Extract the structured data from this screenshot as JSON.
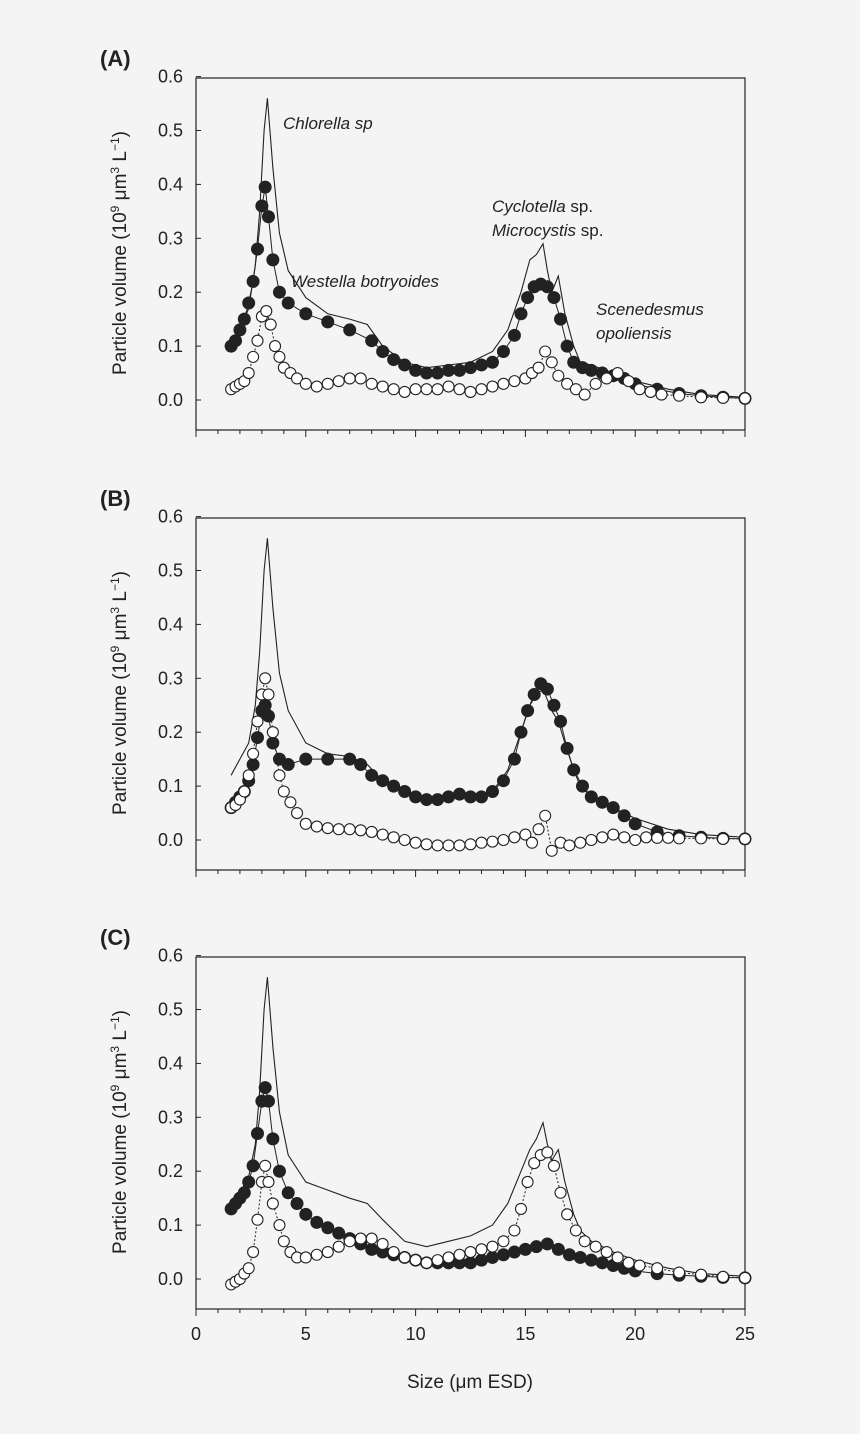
{
  "colors": {
    "background": "#f4f4f4",
    "ink": "#222222",
    "open_fill": "#ffffff"
  },
  "x_axis_title": "Size (μm ESD)",
  "y_axis_title_main": "Particle volume  (10",
  "y_axis_title_sup1": "9",
  "y_axis_title_mid": " μm",
  "y_axis_title_sup2": "3",
  "y_axis_title_end": " L",
  "y_axis_title_sup3": "−1",
  "y_axis_title_close": ")",
  "annotations": {
    "chlorella": "Chlorella sp",
    "westella": "Westella botryoides",
    "cyclotella_name": "Cyclotella",
    "cyclotella_suffix": " sp.",
    "microcystis_name": "Microcystis",
    "microcystis_suffix": " sp.",
    "scenedesmus_1": "Scenedesmus",
    "scenedesmus_2": "opoliensis"
  },
  "chart_data": [
    {
      "type": "line",
      "panel_label": "(A)",
      "xlabel": "Size (μm ESD)",
      "ylabel": "Particle volume (10^9 μm^3 L^-1)",
      "xlim": [
        0,
        25
      ],
      "ylim": [
        -0.05,
        0.6
      ],
      "x_ticks": [
        0,
        5,
        10,
        15,
        20,
        25
      ],
      "y_ticks": [
        "0.0",
        "0.1",
        "0.2",
        "0.3",
        "0.4",
        "0.5",
        "0.6"
      ],
      "show_x_tick_labels": false,
      "series": [
        {
          "name": "reference (line)",
          "style": "line",
          "x": [
            1.6,
            2.0,
            2.4,
            2.7,
            2.9,
            3.1,
            3.25,
            3.5,
            3.8,
            4.2,
            5.0,
            6.0,
            7.0,
            7.8,
            8.5,
            9.5,
            10.5,
            11.5,
            12.5,
            13.5,
            14.2,
            14.8,
            15.2,
            15.5,
            15.8,
            16.0,
            16.2,
            16.5,
            16.8,
            17.2,
            17.5,
            18.0,
            19.0,
            20.0,
            21.5,
            23.0,
            25.0
          ],
          "y": [
            0.1,
            0.13,
            0.17,
            0.25,
            0.35,
            0.5,
            0.56,
            0.43,
            0.31,
            0.24,
            0.19,
            0.16,
            0.15,
            0.14,
            0.1,
            0.07,
            0.06,
            0.065,
            0.07,
            0.09,
            0.13,
            0.2,
            0.26,
            0.27,
            0.29,
            0.24,
            0.2,
            0.23,
            0.16,
            0.1,
            0.07,
            0.065,
            0.05,
            0.035,
            0.02,
            0.01,
            0.005
          ]
        },
        {
          "name": "filled circles",
          "style": "filled",
          "x": [
            1.6,
            1.8,
            2.0,
            2.2,
            2.4,
            2.6,
            2.8,
            3.0,
            3.15,
            3.3,
            3.5,
            3.8,
            4.2,
            5.0,
            6.0,
            7.0,
            8.0,
            8.5,
            9.0,
            9.5,
            10.0,
            10.5,
            11.0,
            11.5,
            12.0,
            12.5,
            13.0,
            13.5,
            14.0,
            14.5,
            14.8,
            15.1,
            15.4,
            15.7,
            16.0,
            16.3,
            16.6,
            16.9,
            17.2,
            17.6,
            18.0,
            18.5,
            19.0,
            19.5,
            20.0,
            21.0,
            22.0,
            23.0,
            24.0,
            25.0
          ],
          "y": [
            0.1,
            0.11,
            0.13,
            0.15,
            0.18,
            0.22,
            0.28,
            0.36,
            0.395,
            0.34,
            0.26,
            0.2,
            0.18,
            0.16,
            0.145,
            0.13,
            0.11,
            0.09,
            0.075,
            0.065,
            0.055,
            0.05,
            0.05,
            0.055,
            0.055,
            0.06,
            0.065,
            0.07,
            0.09,
            0.12,
            0.16,
            0.19,
            0.21,
            0.215,
            0.21,
            0.19,
            0.15,
            0.1,
            0.07,
            0.06,
            0.055,
            0.05,
            0.045,
            0.04,
            0.03,
            0.02,
            0.012,
            0.008,
            0.005,
            0.003
          ]
        },
        {
          "name": "open circles",
          "style": "open",
          "x": [
            1.6,
            1.8,
            2.0,
            2.2,
            2.4,
            2.6,
            2.8,
            3.0,
            3.2,
            3.4,
            3.6,
            3.8,
            4.0,
            4.3,
            4.6,
            5.0,
            5.5,
            6.0,
            6.5,
            7.0,
            7.5,
            8.0,
            8.5,
            9.0,
            9.5,
            10.0,
            10.5,
            11.0,
            11.5,
            12.0,
            12.5,
            13.0,
            13.5,
            14.0,
            14.5,
            15.0,
            15.3,
            15.6,
            15.9,
            16.2,
            16.5,
            16.9,
            17.3,
            17.7,
            18.2,
            18.7,
            19.2,
            19.7,
            20.2,
            20.7,
            21.2,
            22.0,
            23.0,
            24.0,
            25.0
          ],
          "y": [
            0.02,
            0.025,
            0.03,
            0.035,
            0.05,
            0.08,
            0.11,
            0.155,
            0.165,
            0.14,
            0.1,
            0.08,
            0.06,
            0.05,
            0.04,
            0.03,
            0.025,
            0.03,
            0.035,
            0.04,
            0.04,
            0.03,
            0.025,
            0.02,
            0.015,
            0.02,
            0.02,
            0.02,
            0.025,
            0.02,
            0.015,
            0.02,
            0.025,
            0.03,
            0.035,
            0.04,
            0.05,
            0.06,
            0.09,
            0.07,
            0.045,
            0.03,
            0.02,
            0.01,
            0.03,
            0.04,
            0.05,
            0.035,
            0.02,
            0.015,
            0.01,
            0.008,
            0.005,
            0.004,
            0.003
          ]
        }
      ]
    },
    {
      "type": "line",
      "panel_label": "(B)",
      "xlabel": "Size (μm ESD)",
      "ylabel": "Particle volume (10^9 μm^3 L^-1)",
      "xlim": [
        0,
        25
      ],
      "ylim": [
        -0.05,
        0.6
      ],
      "x_ticks": [
        0,
        5,
        10,
        15,
        20,
        25
      ],
      "y_ticks": [
        "0.0",
        "0.1",
        "0.2",
        "0.3",
        "0.4",
        "0.5",
        "0.6"
      ],
      "show_x_tick_labels": false,
      "series": [
        {
          "name": "reference (line)",
          "style": "line",
          "x": [
            1.6,
            2.0,
            2.4,
            2.7,
            2.9,
            3.1,
            3.25,
            3.5,
            3.8,
            4.2,
            5.0,
            6.0,
            7.0,
            7.8,
            8.5,
            9.5,
            10.5,
            11.5,
            12.5,
            13.5,
            14.2,
            14.8,
            15.2,
            15.5,
            15.8,
            16.0,
            16.2,
            16.5,
            16.8,
            17.2,
            17.5,
            18.0,
            19.0,
            20.0,
            21.5,
            23.0,
            25.0
          ],
          "y": [
            0.12,
            0.15,
            0.18,
            0.25,
            0.35,
            0.5,
            0.56,
            0.43,
            0.31,
            0.24,
            0.18,
            0.16,
            0.155,
            0.14,
            0.11,
            0.085,
            0.075,
            0.08,
            0.085,
            0.09,
            0.13,
            0.2,
            0.25,
            0.27,
            0.28,
            0.26,
            0.24,
            0.22,
            0.18,
            0.13,
            0.1,
            0.08,
            0.06,
            0.04,
            0.02,
            0.01,
            0.005
          ]
        },
        {
          "name": "filled circles",
          "style": "filled",
          "x": [
            1.6,
            1.8,
            2.0,
            2.2,
            2.4,
            2.6,
            2.8,
            3.0,
            3.15,
            3.3,
            3.5,
            3.8,
            4.2,
            5.0,
            6.0,
            7.0,
            7.5,
            8.0,
            8.5,
            9.0,
            9.5,
            10.0,
            10.5,
            11.0,
            11.5,
            12.0,
            12.5,
            13.0,
            13.5,
            14.0,
            14.5,
            14.8,
            15.1,
            15.4,
            15.7,
            16.0,
            16.3,
            16.6,
            16.9,
            17.2,
            17.6,
            18.0,
            18.5,
            19.0,
            19.5,
            20.0,
            21.0,
            22.0,
            23.0,
            24.0,
            25.0
          ],
          "y": [
            0.06,
            0.07,
            0.08,
            0.09,
            0.11,
            0.14,
            0.19,
            0.24,
            0.25,
            0.23,
            0.18,
            0.15,
            0.14,
            0.15,
            0.15,
            0.15,
            0.14,
            0.12,
            0.11,
            0.1,
            0.09,
            0.08,
            0.075,
            0.075,
            0.08,
            0.085,
            0.08,
            0.08,
            0.09,
            0.11,
            0.15,
            0.2,
            0.24,
            0.27,
            0.29,
            0.28,
            0.25,
            0.22,
            0.17,
            0.13,
            0.1,
            0.08,
            0.07,
            0.06,
            0.045,
            0.03,
            0.015,
            0.008,
            0.005,
            0.003,
            0.002
          ]
        },
        {
          "name": "open circles",
          "style": "open",
          "x": [
            1.6,
            1.8,
            2.0,
            2.2,
            2.4,
            2.6,
            2.8,
            3.0,
            3.15,
            3.3,
            3.5,
            3.8,
            4.0,
            4.3,
            4.6,
            5.0,
            5.5,
            6.0,
            6.5,
            7.0,
            7.5,
            8.0,
            8.5,
            9.0,
            9.5,
            10.0,
            10.5,
            11.0,
            11.5,
            12.0,
            12.5,
            13.0,
            13.5,
            14.0,
            14.5,
            15.0,
            15.3,
            15.6,
            15.9,
            16.2,
            16.6,
            17.0,
            17.5,
            18.0,
            18.5,
            19.0,
            19.5,
            20.0,
            20.5,
            21.0,
            21.5,
            22.0,
            23.0,
            24.0,
            25.0
          ],
          "y": [
            0.06,
            0.065,
            0.075,
            0.09,
            0.12,
            0.16,
            0.22,
            0.27,
            0.3,
            0.27,
            0.2,
            0.12,
            0.09,
            0.07,
            0.05,
            0.03,
            0.025,
            0.022,
            0.02,
            0.02,
            0.018,
            0.015,
            0.01,
            0.005,
            0.0,
            -0.005,
            -0.008,
            -0.01,
            -0.01,
            -0.01,
            -0.008,
            -0.005,
            -0.003,
            0.0,
            0.005,
            0.01,
            -0.005,
            0.02,
            0.045,
            -0.02,
            -0.005,
            -0.01,
            -0.005,
            0.0,
            0.005,
            0.01,
            0.005,
            0.0,
            0.005,
            0.004,
            0.004,
            0.003,
            0.003,
            0.002,
            0.002
          ]
        }
      ]
    },
    {
      "type": "line",
      "panel_label": "(C)",
      "xlabel": "Size (μm ESD)",
      "ylabel": "Particle volume (10^9 μm^3 L^-1)",
      "xlim": [
        0,
        25
      ],
      "ylim": [
        -0.05,
        0.6
      ],
      "x_ticks": [
        0,
        5,
        10,
        15,
        20,
        25
      ],
      "y_ticks": [
        "0.0",
        "0.1",
        "0.2",
        "0.3",
        "0.4",
        "0.5",
        "0.6"
      ],
      "x_tick_labels": [
        "0",
        "5",
        "10",
        "15",
        "20",
        "25"
      ],
      "show_x_tick_labels": true,
      "series": [
        {
          "name": "reference (line)",
          "style": "line",
          "x": [
            1.6,
            2.0,
            2.4,
            2.7,
            2.9,
            3.1,
            3.25,
            3.5,
            3.8,
            4.2,
            5.0,
            6.0,
            7.0,
            7.8,
            8.5,
            9.5,
            10.5,
            11.5,
            12.5,
            13.5,
            14.2,
            14.8,
            15.2,
            15.5,
            15.8,
            16.0,
            16.2,
            16.5,
            16.8,
            17.2,
            17.5,
            18.0,
            19.0,
            20.0,
            21.5,
            23.0,
            25.0
          ],
          "y": [
            0.13,
            0.16,
            0.19,
            0.25,
            0.35,
            0.5,
            0.56,
            0.43,
            0.31,
            0.23,
            0.18,
            0.165,
            0.15,
            0.14,
            0.11,
            0.07,
            0.06,
            0.07,
            0.08,
            0.1,
            0.14,
            0.2,
            0.24,
            0.26,
            0.29,
            0.25,
            0.22,
            0.24,
            0.18,
            0.12,
            0.09,
            0.07,
            0.05,
            0.035,
            0.02,
            0.01,
            0.005
          ]
        },
        {
          "name": "filled circles",
          "style": "filled",
          "x": [
            1.6,
            1.8,
            2.0,
            2.2,
            2.4,
            2.6,
            2.8,
            3.0,
            3.15,
            3.3,
            3.5,
            3.8,
            4.2,
            4.6,
            5.0,
            5.5,
            6.0,
            6.5,
            7.0,
            7.5,
            8.0,
            8.5,
            9.0,
            9.5,
            10.0,
            10.5,
            11.0,
            11.5,
            12.0,
            12.5,
            13.0,
            13.5,
            14.0,
            14.5,
            15.0,
            15.5,
            16.0,
            16.5,
            17.0,
            17.5,
            18.0,
            18.5,
            19.0,
            19.5,
            20.0,
            21.0,
            22.0,
            23.0,
            24.0,
            25.0
          ],
          "y": [
            0.13,
            0.14,
            0.15,
            0.16,
            0.18,
            0.21,
            0.27,
            0.33,
            0.355,
            0.33,
            0.26,
            0.2,
            0.16,
            0.14,
            0.12,
            0.105,
            0.095,
            0.085,
            0.075,
            0.065,
            0.055,
            0.05,
            0.045,
            0.04,
            0.035,
            0.03,
            0.03,
            0.03,
            0.03,
            0.03,
            0.035,
            0.04,
            0.045,
            0.05,
            0.055,
            0.06,
            0.065,
            0.055,
            0.045,
            0.04,
            0.035,
            0.03,
            0.025,
            0.02,
            0.015,
            0.01,
            0.007,
            0.005,
            0.003,
            0.002
          ]
        },
        {
          "name": "open circles",
          "style": "open",
          "x": [
            1.6,
            1.8,
            2.0,
            2.2,
            2.4,
            2.6,
            2.8,
            3.0,
            3.15,
            3.3,
            3.5,
            3.8,
            4.0,
            4.3,
            4.6,
            5.0,
            5.5,
            6.0,
            6.5,
            7.0,
            7.5,
            8.0,
            8.5,
            9.0,
            9.5,
            10.0,
            10.5,
            11.0,
            11.5,
            12.0,
            12.5,
            13.0,
            13.5,
            14.0,
            14.5,
            14.8,
            15.1,
            15.4,
            15.7,
            16.0,
            16.3,
            16.6,
            16.9,
            17.3,
            17.7,
            18.2,
            18.7,
            19.2,
            19.7,
            20.2,
            21.0,
            22.0,
            23.0,
            24.0,
            25.0
          ],
          "y": [
            -0.01,
            -0.005,
            0.0,
            0.01,
            0.02,
            0.05,
            0.11,
            0.18,
            0.21,
            0.18,
            0.14,
            0.1,
            0.07,
            0.05,
            0.04,
            0.04,
            0.045,
            0.05,
            0.06,
            0.07,
            0.075,
            0.075,
            0.065,
            0.05,
            0.04,
            0.035,
            0.03,
            0.035,
            0.04,
            0.045,
            0.05,
            0.055,
            0.06,
            0.07,
            0.09,
            0.13,
            0.18,
            0.215,
            0.23,
            0.235,
            0.21,
            0.16,
            0.12,
            0.09,
            0.07,
            0.06,
            0.05,
            0.04,
            0.03,
            0.025,
            0.02,
            0.012,
            0.008,
            0.004,
            0.002
          ]
        }
      ]
    }
  ]
}
